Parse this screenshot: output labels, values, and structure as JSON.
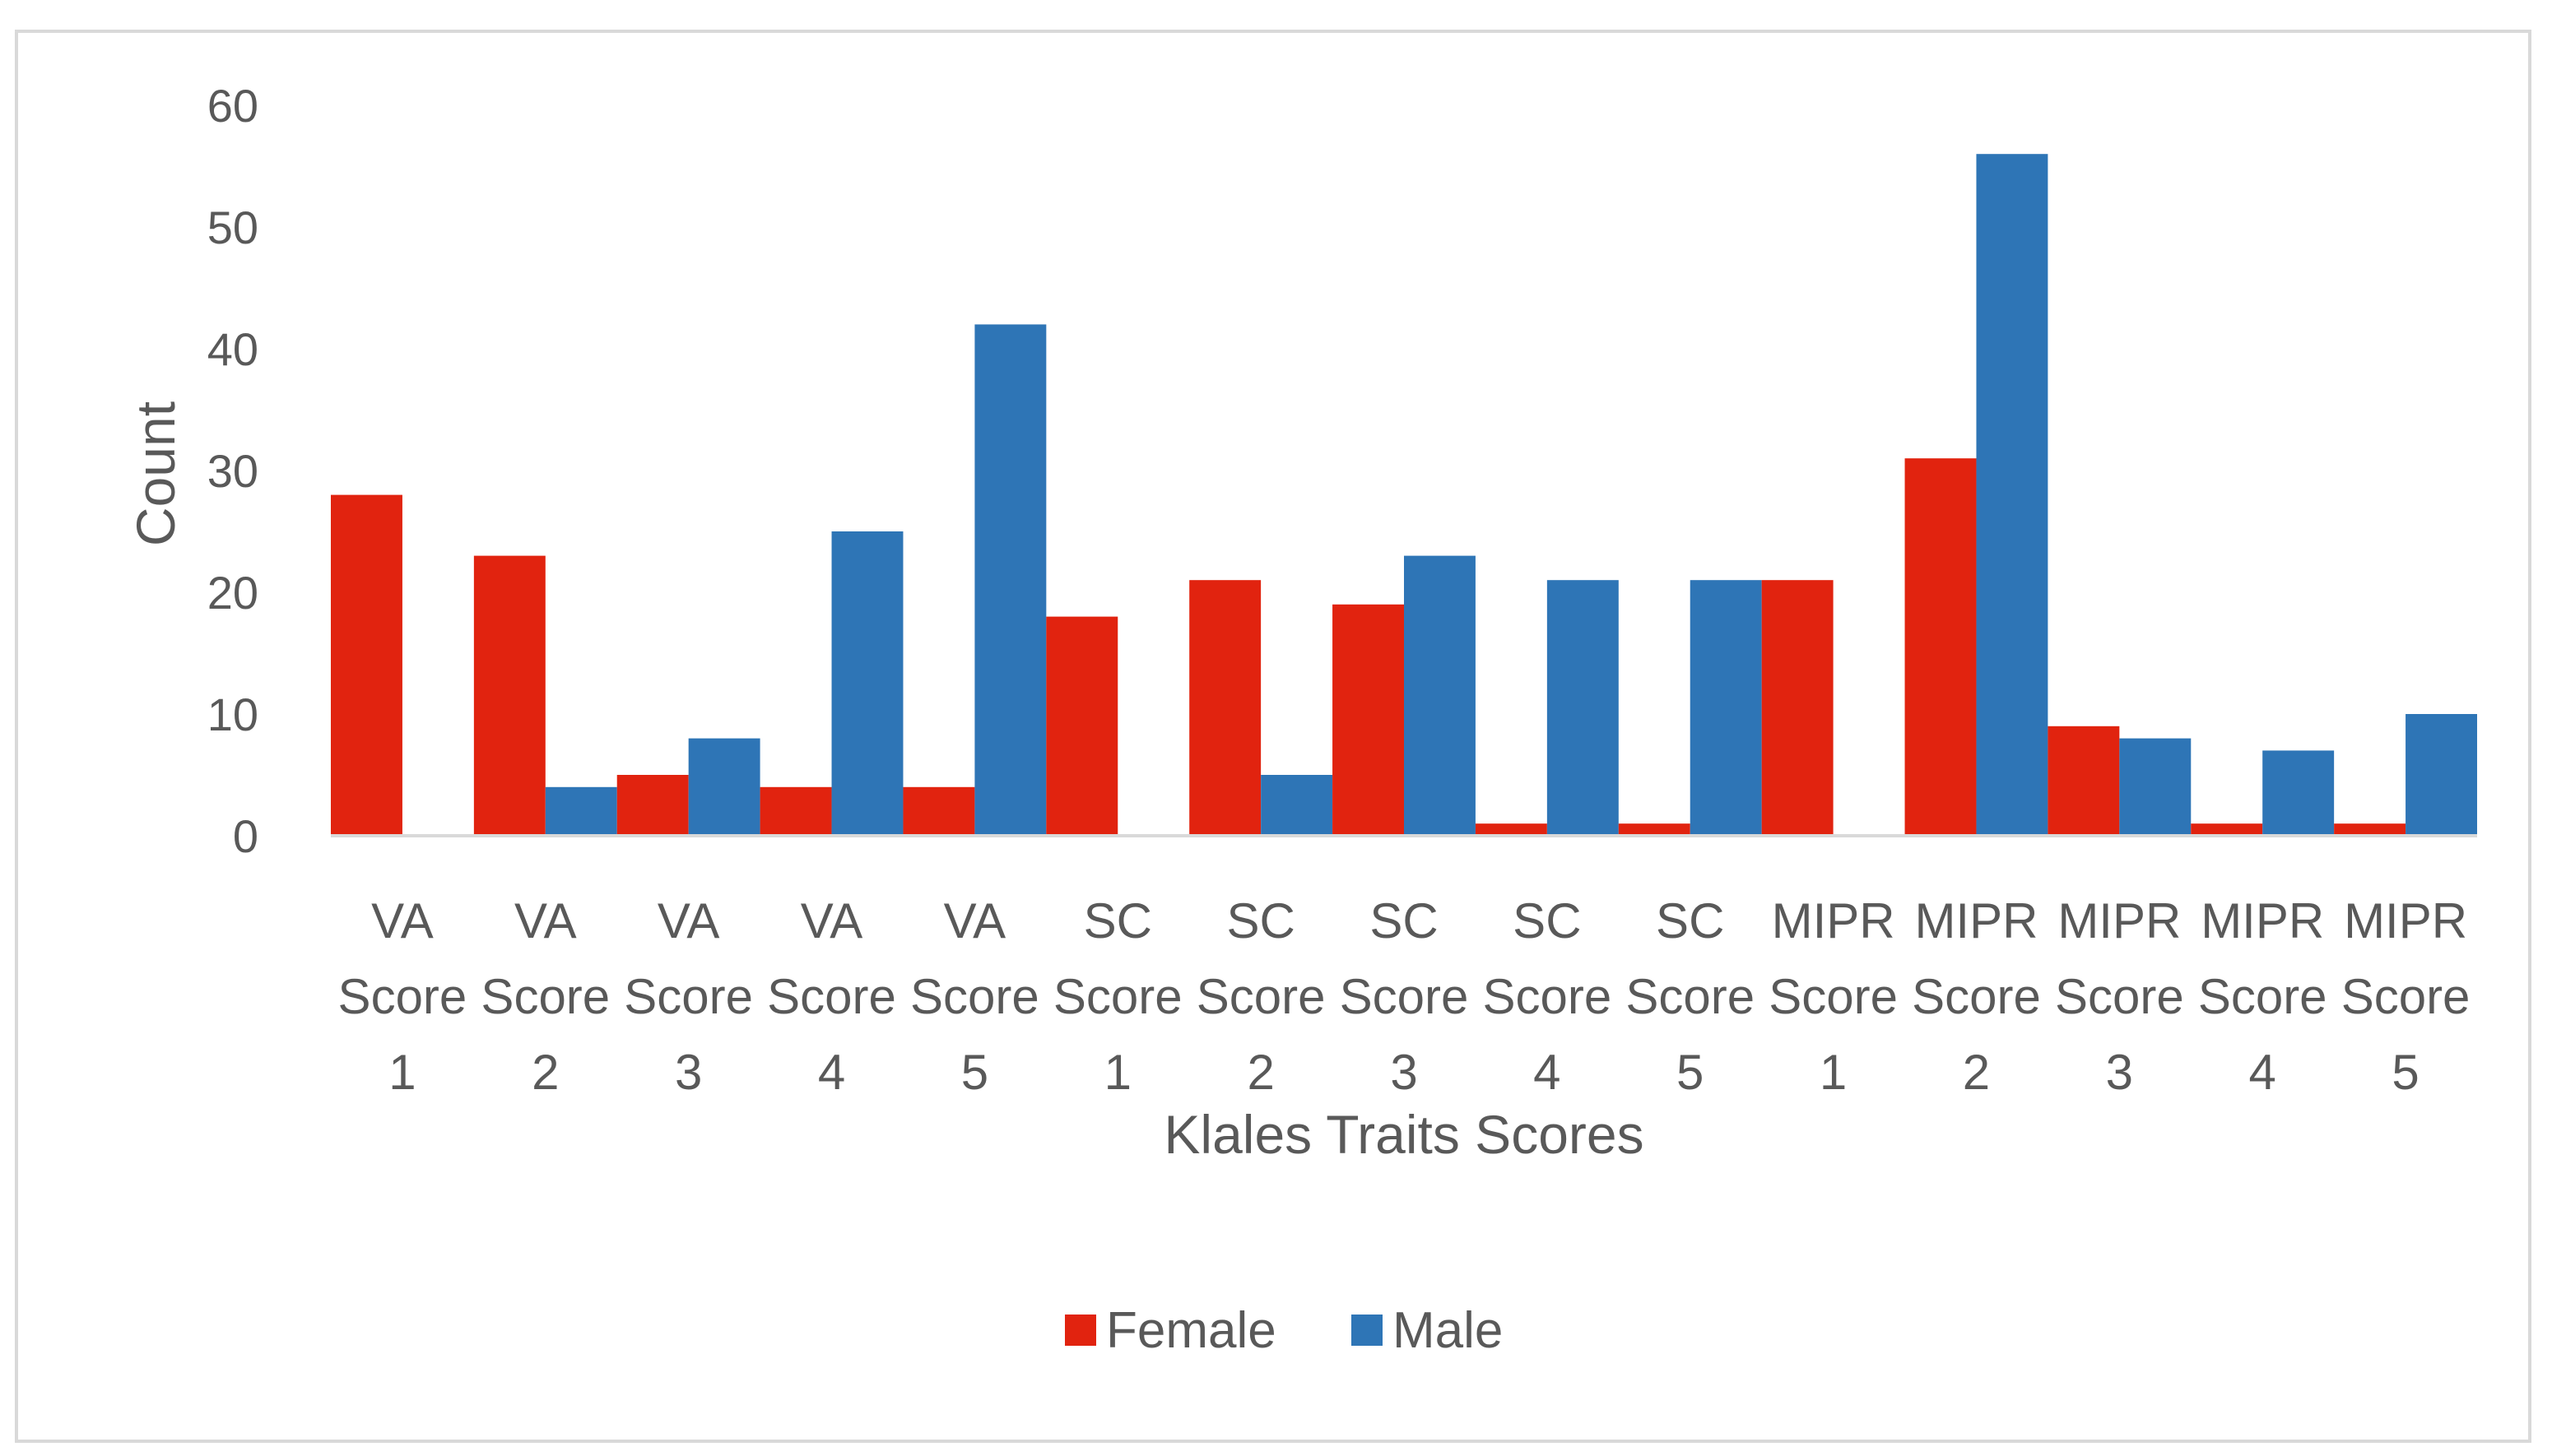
{
  "chart_data": {
    "type": "bar",
    "title": "",
    "xlabel": "Klales Traits Scores",
    "ylabel": "Count",
    "ylim": [
      0,
      60
    ],
    "yticks": [
      0,
      10,
      20,
      30,
      40,
      50,
      60
    ],
    "grid": false,
    "legend_position": "bottom",
    "categories": [
      [
        "VA",
        "Score",
        "1"
      ],
      [
        "VA",
        "Score",
        "2"
      ],
      [
        "VA",
        "Score",
        "3"
      ],
      [
        "VA",
        "Score",
        "4"
      ],
      [
        "VA",
        "Score",
        "5"
      ],
      [
        "SC",
        "Score",
        "1"
      ],
      [
        "SC",
        "Score",
        "2"
      ],
      [
        "SC",
        "Score",
        "3"
      ],
      [
        "SC",
        "Score",
        "4"
      ],
      [
        "SC",
        "Score",
        "5"
      ],
      [
        "MIPR",
        "Score",
        "1"
      ],
      [
        "MIPR",
        "Score",
        "2"
      ],
      [
        "MIPR",
        "Score",
        "3"
      ],
      [
        "MIPR",
        "Score",
        "4"
      ],
      [
        "MIPR",
        "Score",
        "5"
      ]
    ],
    "series": [
      {
        "name": "Female",
        "color": "#e1230f",
        "values": [
          28,
          23,
          5,
          4,
          4,
          18,
          21,
          19,
          1,
          1,
          21,
          31,
          9,
          1,
          1
        ]
      },
      {
        "name": "Male",
        "color": "#2e75b6",
        "values": [
          0,
          4,
          8,
          25,
          42,
          0,
          5,
          23,
          21,
          21,
          0,
          56,
          8,
          7,
          10
        ]
      }
    ]
  },
  "colors": {
    "axis_line": "#d9d9d9",
    "text": "#595959",
    "frame": "#d9d9d9"
  }
}
